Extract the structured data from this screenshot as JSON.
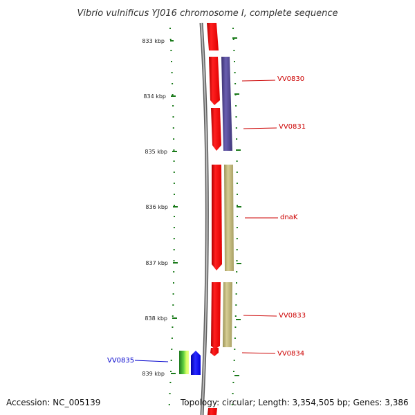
{
  "title": "Vibrio vulnificus YJ016 chromosome I, complete sequence",
  "footer": {
    "accession": "Accession: NC_005139",
    "topology": "Topology: circular; Length: 3,354,505 bp; Genes: 3,386"
  },
  "ruler": {
    "ticks": [
      "833 kbp",
      "834 kbp",
      "835 kbp",
      "836 kbp",
      "837 kbp",
      "838 kbp",
      "839 kbp"
    ]
  },
  "genes": [
    {
      "name": "VV0830",
      "color": "#cc0000"
    },
    {
      "name": "VV0831",
      "color": "#cc0000"
    },
    {
      "name": "dnaK",
      "color": "#cc0000"
    },
    {
      "name": "VV0833",
      "color": "#cc0000"
    },
    {
      "name": "VV0834",
      "color": "#cc0000"
    },
    {
      "name": "VV0835",
      "color": "#0000cc"
    }
  ],
  "colors": {
    "forward_feature": "#ff0000",
    "cog_blue": "#4a3f8c",
    "cog_khaki": "#bdb478",
    "reverse_blue": "#0000ff",
    "reverse_green": "#2e8b2e",
    "tick_green": "#1a7a1a",
    "backbone": "#888888"
  }
}
